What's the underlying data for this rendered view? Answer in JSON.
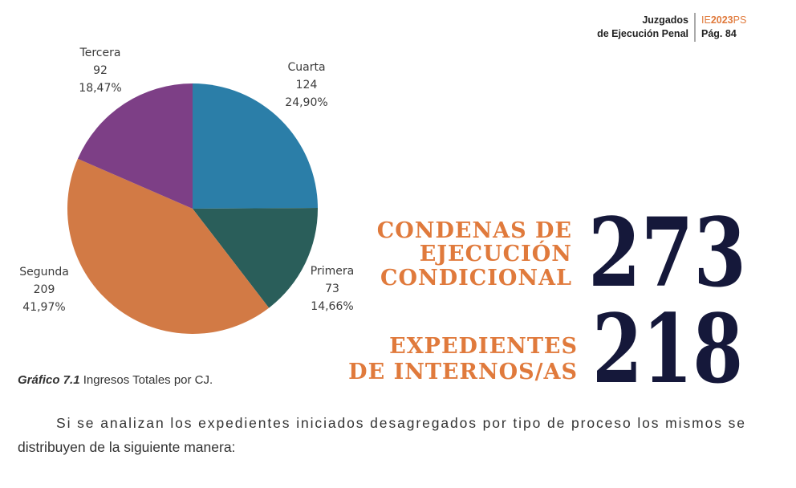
{
  "header": {
    "section_line1": "Juzgados",
    "section_line2": "de Ejecución Penal",
    "edition_parts": [
      "IE",
      "2023",
      "PS"
    ],
    "page": "Pág. 84"
  },
  "chart_data": {
    "type": "pie",
    "categories": [
      "Cuarta",
      "Primera",
      "Segunda",
      "Tercera"
    ],
    "values": [
      124,
      73,
      209,
      92
    ],
    "percent_labels": [
      "24,90%",
      "14,66%",
      "41,97%",
      "18,47%"
    ],
    "colors": [
      "#2b7ea8",
      "#2a5e5a",
      "#d27a45",
      "#7d3f86"
    ]
  },
  "caption": {
    "label": "Gráfico 7.1",
    "text": " Ingresos Totales por CJ."
  },
  "stats": [
    {
      "lines": [
        "CONDENAS DE",
        "EJECUCIÓN",
        "CONDICIONAL"
      ],
      "number": "273"
    },
    {
      "lines": [
        "EXPEDIENTES",
        "DE INTERNOS/AS"
      ],
      "number": "218"
    }
  ],
  "paragraph": [
    "Si se analizan los expedientes iniciados desagregados por tipo de proceso los mismos se",
    "distribuyen de la siguiente manera:"
  ]
}
